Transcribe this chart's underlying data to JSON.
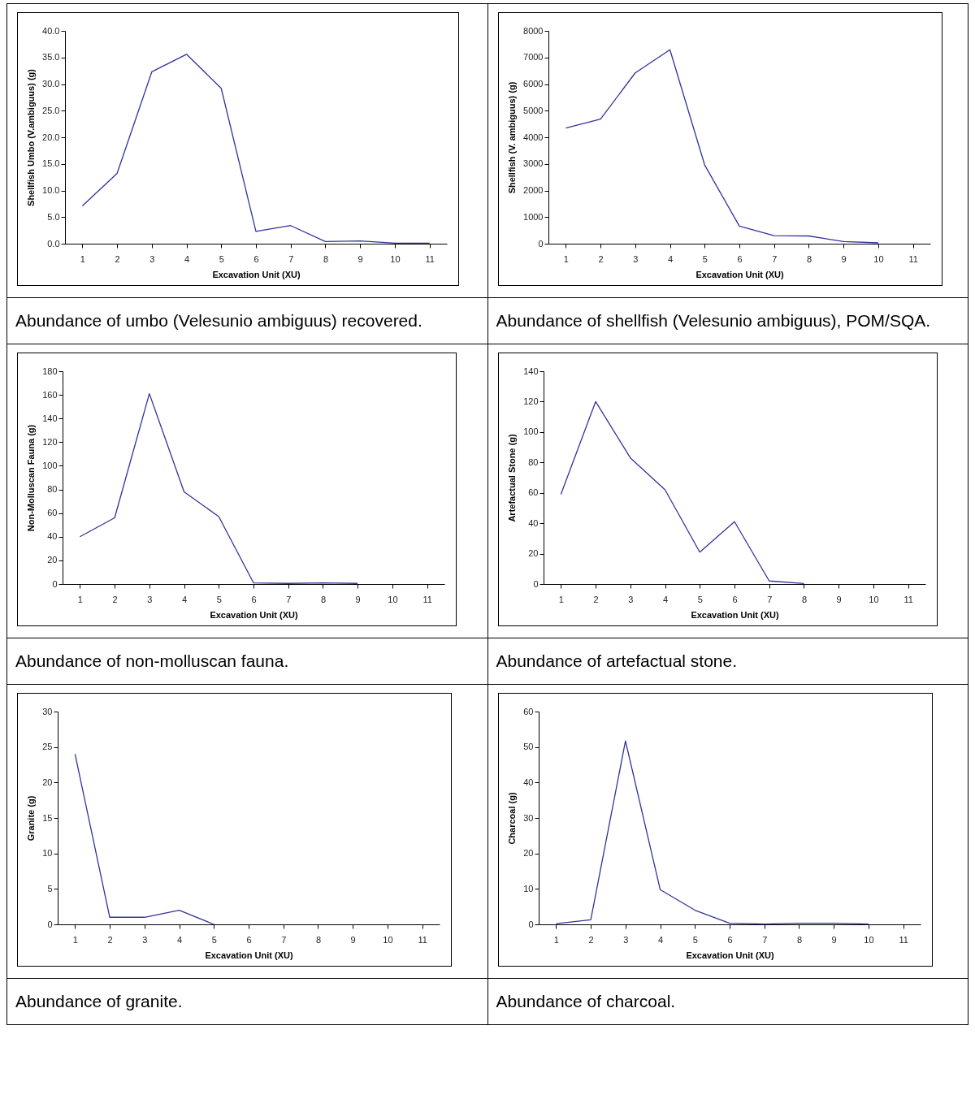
{
  "chart_data": [
    {
      "type": "line",
      "xlabel": "Excavation Unit (XU)",
      "ylabel": "Shellfish Umbo (V.ambiguus) (g)",
      "categories": [
        "1",
        "2",
        "3",
        "4",
        "5",
        "6",
        "7",
        "8",
        "9",
        "10",
        "11"
      ],
      "color": "#333399",
      "values": [
        7.1,
        13.2,
        32.3,
        35.6,
        29.2,
        2.3,
        3.4,
        0.4,
        0.5,
        0.1,
        0.1
      ],
      "ylim": [
        0,
        40
      ],
      "yticks": [
        {
          "value": 0,
          "label": "0.0"
        },
        {
          "value": 5,
          "label": "5.0"
        },
        {
          "value": 10,
          "label": "10.0"
        },
        {
          "value": 15,
          "label": "15.0"
        },
        {
          "value": 20,
          "label": "20.0"
        },
        {
          "value": 25,
          "label": "25.0"
        },
        {
          "value": 30,
          "label": "30.0"
        },
        {
          "value": 35,
          "label": "35.0"
        },
        {
          "value": 40,
          "label": "40.0"
        }
      ],
      "grid": false,
      "annotations": [
        "Abundance of umbo (Velesunio ambiguus) recovered."
      ]
    },
    {
      "type": "line",
      "xlabel": "Excavation Unit (XU)",
      "ylabel": "Shellfish (V. ambiguus) (g)",
      "categories": [
        "1",
        "2",
        "3",
        "4",
        "5",
        "6",
        "7",
        "8",
        "9",
        "10",
        "11"
      ],
      "color": "#333399",
      "values": [
        4350,
        4680,
        6420,
        7290,
        2960,
        660,
        300,
        290,
        80,
        30,
        null
      ],
      "ylim": [
        0,
        8000
      ],
      "yticks": [
        0,
        1000,
        2000,
        3000,
        4000,
        5000,
        6000,
        7000,
        8000
      ],
      "grid": false,
      "annotations": [
        "Abundance of shellfish (Velesunio ambiguus), POM/SQA."
      ]
    },
    {
      "type": "line",
      "xlabel": "Excavation Unit (XU)",
      "ylabel": "Non-Molluscan Fauna (g)",
      "categories": [
        "1",
        "2",
        "3",
        "4",
        "5",
        "6",
        "7",
        "8",
        "9",
        "10",
        "11"
      ],
      "color": "#333399",
      "values": [
        40,
        56,
        161,
        78,
        57,
        1,
        0.5,
        1,
        0.5,
        null,
        null
      ],
      "ylim": [
        0,
        180
      ],
      "yticks": [
        0,
        20,
        40,
        60,
        80,
        100,
        120,
        140,
        160,
        180
      ],
      "grid": false,
      "annotations": [
        "Abundance of non-molluscan fauna."
      ]
    },
    {
      "type": "line",
      "xlabel": "Excavation Unit (XU)",
      "ylabel": "Artefactual Stone (g)",
      "categories": [
        "1",
        "2",
        "3",
        "4",
        "5",
        "6",
        "7",
        "8",
        "9",
        "10",
        "11"
      ],
      "color": "#333399",
      "values": [
        59,
        120,
        83,
        62,
        21,
        41,
        2,
        0.3,
        null,
        null,
        null
      ],
      "ylim": [
        0,
        140
      ],
      "yticks": [
        0,
        20,
        40,
        60,
        80,
        100,
        120,
        140
      ],
      "grid": false,
      "annotations": [
        "Abundance of artefactual stone."
      ]
    },
    {
      "type": "line",
      "xlabel": "Excavation Unit (XU)",
      "ylabel": "Granite (g)",
      "categories": [
        "1",
        "2",
        "3",
        "4",
        "5",
        "6",
        "7",
        "8",
        "9",
        "10",
        "11"
      ],
      "color": "#333399",
      "values": [
        24,
        1,
        1,
        2,
        0,
        null,
        null,
        null,
        null,
        null,
        null
      ],
      "ylim": [
        0,
        30
      ],
      "yticks": [
        0,
        5,
        10,
        15,
        20,
        25,
        30
      ],
      "grid": false,
      "annotations": [
        "Abundance of granite."
      ]
    },
    {
      "type": "line",
      "xlabel": "Excavation Unit (XU)",
      "ylabel": "Charcoal (g)",
      "categories": [
        "1",
        "2",
        "3",
        "4",
        "5",
        "6",
        "7",
        "8",
        "9",
        "10",
        "11"
      ],
      "color": "#333399",
      "values": [
        0.2,
        1.3,
        51.7,
        9.8,
        4,
        0.3,
        0.1,
        0.3,
        0.3,
        0.1,
        null
      ],
      "ylim": [
        0,
        60
      ],
      "yticks": [
        0,
        10,
        20,
        30,
        40,
        50,
        60
      ],
      "grid": false,
      "annotations": [
        "Abundance of charcoal."
      ]
    }
  ]
}
